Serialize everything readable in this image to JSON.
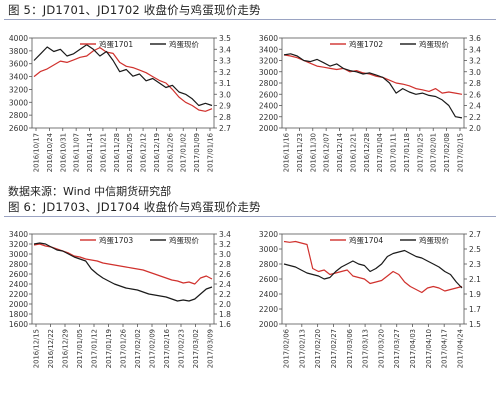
{
  "figures": [
    {
      "title": "图 5：JD1701、JD1702 收盘价与鸡蛋现价走势",
      "source": "数据来源：Wind  中信期货研究部"
    },
    {
      "title": "图 6：JD1703、JD1704 收盘价与鸡蛋现价走势",
      "source": "数据来源：Wind  中信期货研究部"
    }
  ],
  "colors": {
    "futures": "#d0312d",
    "spot": "#1a1a1a",
    "axis": "#555555",
    "grid": "#e6e6e6"
  },
  "chart_data": [
    {
      "type": "line",
      "title": "",
      "legend_position": "top",
      "y_left_ticks": [
        2600,
        2800,
        3000,
        3200,
        3400,
        3600,
        3800,
        4000
      ],
      "y_right_ticks": [
        "2.7",
        "2.8",
        "2.9",
        "3.0",
        "3.1",
        "3.2",
        "3.3",
        "3.4",
        "3.5"
      ],
      "ylim": [
        2600,
        4000
      ],
      "y2lim": [
        2.7,
        3.5
      ],
      "x_labels": [
        "2016/10/17",
        "2016/10/24",
        "2016/10/31",
        "2016/11/07",
        "2016/11/14",
        "2016/11/21",
        "2016/11/28",
        "2016/12/05",
        "2016/12/12",
        "2016/12/19",
        "2016/12/26",
        "2017/01/02",
        "2017/01/09",
        "2017/01/16"
      ],
      "series": [
        {
          "name": "鸡蛋1701",
          "axis": "left",
          "color": "#d0312d",
          "values": [
            3400,
            3480,
            3520,
            3580,
            3640,
            3620,
            3660,
            3700,
            3720,
            3800,
            3850,
            3780,
            3760,
            3620,
            3560,
            3540,
            3500,
            3460,
            3400,
            3340,
            3300,
            3200,
            3080,
            3000,
            2950,
            2880,
            2860,
            2900
          ]
        },
        {
          "name": "鸡蛋现价",
          "axis": "right",
          "color": "#1a1a1a",
          "values": [
            3.3,
            3.36,
            3.42,
            3.38,
            3.4,
            3.34,
            3.36,
            3.4,
            3.44,
            3.4,
            3.34,
            3.38,
            3.3,
            3.2,
            3.22,
            3.16,
            3.18,
            3.12,
            3.14,
            3.1,
            3.06,
            3.08,
            3.02,
            3.0,
            2.96,
            2.9,
            2.92,
            2.9
          ]
        }
      ]
    },
    {
      "type": "line",
      "title": "",
      "legend_position": "top",
      "y_left_ticks": [
        2000,
        2200,
        2400,
        2600,
        2800,
        3000,
        3200,
        3400,
        3600
      ],
      "y_right_ticks": [
        "2.0",
        "2.2",
        "2.4",
        "2.6",
        "2.8",
        "3.0",
        "3.2",
        "3.4",
        "3.6"
      ],
      "ylim": [
        2000,
        3600
      ],
      "y2lim": [
        2.0,
        3.6
      ],
      "x_labels": [
        "2016/11/16",
        "2016/11/23",
        "2016/11/30",
        "2016/12/07",
        "2016/12/14",
        "2016/12/21",
        "2016/12/28",
        "2017/01/04",
        "2017/01/11",
        "2017/01/18",
        "2017/01/25",
        "2017/02/01",
        "2017/02/08",
        "2017/02/15"
      ],
      "series": [
        {
          "name": "鸡蛋1702",
          "axis": "left",
          "color": "#d0312d",
          "values": [
            3300,
            3280,
            3250,
            3200,
            3150,
            3100,
            3080,
            3060,
            3040,
            3060,
            3000,
            3020,
            2980,
            2960,
            2920,
            2900,
            2850,
            2800,
            2780,
            2750,
            2700,
            2680,
            2650,
            2700,
            2620,
            2640,
            2620,
            2600
          ]
        },
        {
          "name": "鸡蛋现价",
          "axis": "right",
          "color": "#1a1a1a",
          "values": [
            3.3,
            3.32,
            3.28,
            3.2,
            3.18,
            3.22,
            3.16,
            3.1,
            3.14,
            3.06,
            3.02,
            3.0,
            2.96,
            2.98,
            2.94,
            2.9,
            2.8,
            2.62,
            2.7,
            2.64,
            2.6,
            2.62,
            2.58,
            2.56,
            2.5,
            2.4,
            2.2,
            2.18
          ]
        }
      ]
    },
    {
      "type": "line",
      "title": "",
      "legend_position": "top",
      "y_left_ticks": [
        1600,
        1800,
        2000,
        2200,
        2400,
        2600,
        2800,
        3000,
        3200,
        3400
      ],
      "y_right_ticks": [
        "1.6",
        "1.8",
        "2.0",
        "2.2",
        "2.4",
        "2.6",
        "2.8",
        "3.0",
        "3.2",
        "3.4"
      ],
      "ylim": [
        1600,
        3400
      ],
      "y2lim": [
        1.6,
        3.4
      ],
      "x_labels": [
        "2016/12/15",
        "2016/12/22",
        "2016/12/29",
        "2017/01/05",
        "2017/01/12",
        "2017/01/19",
        "2017/01/26",
        "2017/02/02",
        "2017/02/09",
        "2017/02/16",
        "2017/02/23",
        "2017/03/02",
        "2017/03/09"
      ],
      "series": [
        {
          "name": "鸡蛋1703",
          "axis": "left",
          "color": "#d0312d",
          "values": [
            3180,
            3200,
            3160,
            3140,
            3100,
            3060,
            3020,
            2960,
            2940,
            2900,
            2880,
            2860,
            2820,
            2800,
            2780,
            2760,
            2740,
            2720,
            2700,
            2680,
            2640,
            2600,
            2560,
            2520,
            2480,
            2460,
            2420,
            2440,
            2400,
            2520,
            2560,
            2500
          ]
        },
        {
          "name": "鸡蛋现价",
          "axis": "right",
          "color": "#1a1a1a",
          "values": [
            3.2,
            3.22,
            3.2,
            3.14,
            3.08,
            3.06,
            3.0,
            2.94,
            2.9,
            2.86,
            2.7,
            2.6,
            2.52,
            2.46,
            2.4,
            2.36,
            2.32,
            2.3,
            2.28,
            2.24,
            2.2,
            2.18,
            2.16,
            2.14,
            2.1,
            2.06,
            2.08,
            2.06,
            2.1,
            2.2,
            2.3,
            2.34
          ]
        }
      ]
    },
    {
      "type": "line",
      "title": "",
      "legend_position": "top",
      "y_left_ticks": [
        2000,
        2200,
        2400,
        2600,
        2800,
        3000,
        3200
      ],
      "y_right_ticks": [
        "1.5",
        "1.7",
        "1.9",
        "2.1",
        "2.3",
        "2.5",
        "2.7"
      ],
      "ylim": [
        2000,
        3200
      ],
      "y2lim": [
        1.5,
        2.7
      ],
      "x_labels": [
        "2017/02/06",
        "2017/02/13",
        "2017/02/20",
        "2017/02/27",
        "2017/03/06",
        "2017/03/13",
        "2017/03/20",
        "2017/03/27",
        "2017/04/03",
        "2017/04/10",
        "2017/04/17",
        "2017/04/24"
      ],
      "series": [
        {
          "name": "鸡蛋1704",
          "axis": "left",
          "color": "#d0312d",
          "values": [
            3100,
            3090,
            3100,
            3080,
            3060,
            2740,
            2700,
            2720,
            2660,
            2680,
            2700,
            2720,
            2640,
            2620,
            2600,
            2540,
            2560,
            2580,
            2640,
            2700,
            2660,
            2560,
            2500,
            2460,
            2420,
            2480,
            2500,
            2480,
            2440,
            2460,
            2480,
            2500
          ]
        },
        {
          "name": "鸡蛋现价",
          "axis": "right",
          "color": "#1a1a1a",
          "values": [
            2.3,
            2.28,
            2.26,
            2.22,
            2.18,
            2.16,
            2.14,
            2.1,
            2.12,
            2.2,
            2.26,
            2.3,
            2.34,
            2.3,
            2.28,
            2.2,
            2.24,
            2.3,
            2.4,
            2.44,
            2.46,
            2.48,
            2.44,
            2.4,
            2.38,
            2.34,
            2.3,
            2.26,
            2.2,
            2.16,
            2.06,
            1.98
          ]
        }
      ]
    }
  ]
}
